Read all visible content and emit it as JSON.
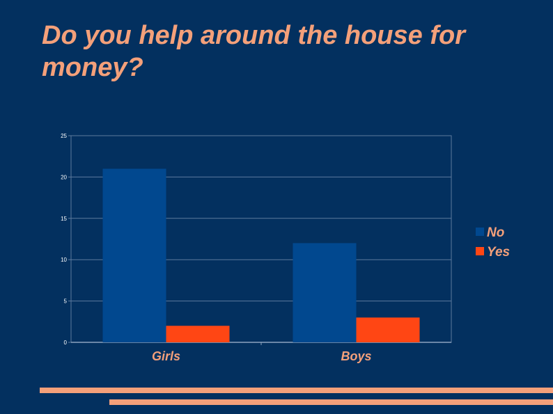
{
  "slide": {
    "title": "Do you help around the house for money?"
  },
  "colors": {
    "background": "#03305f",
    "accent": "#f4a07a",
    "gridline": "#5d7a9e"
  },
  "chart_data": {
    "type": "bar",
    "categories": [
      "Girls",
      "Boys"
    ],
    "series": [
      {
        "name": "No",
        "values": [
          21,
          12
        ],
        "color": "#01488f"
      },
      {
        "name": "Yes",
        "values": [
          2,
          3
        ],
        "color": "#ff4614"
      }
    ],
    "ylim": [
      0,
      25
    ],
    "yticks": [
      0,
      5,
      10,
      15,
      20,
      25
    ],
    "grid": true,
    "legend": "right",
    "xlabel": "",
    "ylabel": ""
  }
}
